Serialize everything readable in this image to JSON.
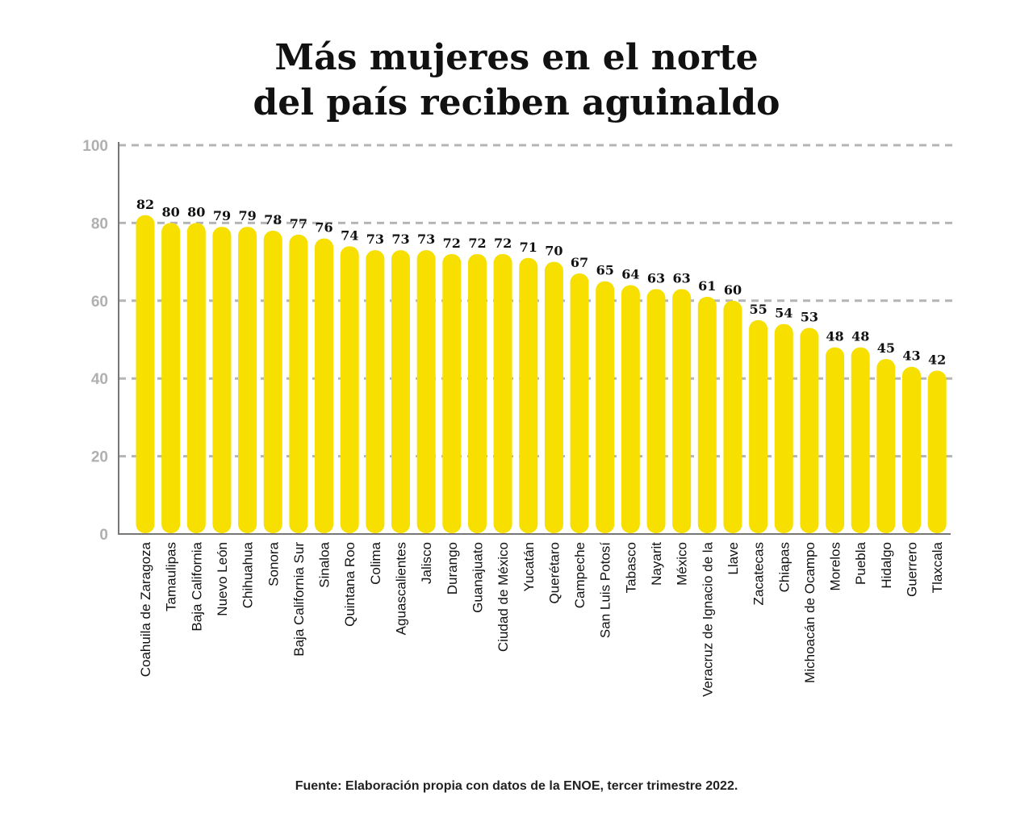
{
  "chart_data": {
    "type": "bar",
    "title_lines": [
      "Más mujeres en el norte",
      "del país reciben aguinaldo"
    ],
    "categories": [
      "Coahuila de Zaragoza",
      "Tamaulipas",
      "Baja California",
      "Nuevo León",
      "Chihuahua",
      "Sonora",
      "Baja California Sur",
      "Sinaloa",
      "Quintana Roo",
      "Colima",
      "Aguascalientes",
      "Jalisco",
      "Durango",
      "Guanajuato",
      "Ciudad de México",
      "Yucatán",
      "Querétaro",
      "Campeche",
      "San Luis Potosí",
      "Tabasco",
      "Nayarit",
      "México",
      "Veracruz de Ignacio de la",
      "Llave",
      "Zacatecas",
      "Chiapas",
      "Michoacán de Ocampo",
      "Morelos",
      "Puebla",
      "Hidalgo",
      "Guerrero",
      "Tlaxcala"
    ],
    "values": [
      82,
      80,
      80,
      79,
      79,
      78,
      77,
      76,
      74,
      73,
      73,
      73,
      72,
      72,
      72,
      71,
      70,
      67,
      65,
      64,
      63,
      63,
      61,
      60,
      55,
      54,
      53,
      48,
      48,
      45,
      43,
      42
    ],
    "ylim": [
      0,
      100
    ],
    "yticks": [
      0,
      20,
      40,
      60,
      80,
      100
    ],
    "grid": true,
    "bar_color": "#f7df00",
    "grid_color": "#b5b5b5",
    "tick_color": "#b0b0b0",
    "source": "Fuente: Elaboración propia con datos de la ENOE, tercer trimestre 2022."
  }
}
